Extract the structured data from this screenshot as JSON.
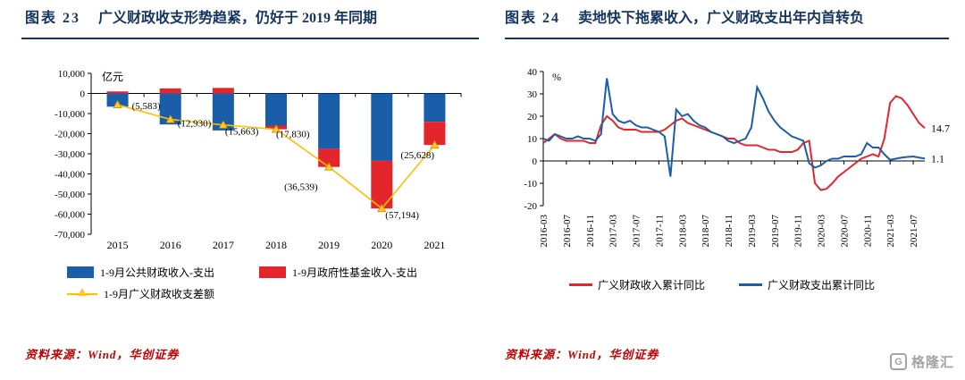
{
  "colors": {
    "title_navy": "#15355E",
    "bar_blue": "#1A5DA8",
    "bar_red": "#E5252C",
    "line_yellow": "#FFC000",
    "marker_yellow": "#FFC828",
    "marker_edge": "#C89600",
    "label_red": "#E60000",
    "line_red": "#E5252C",
    "line_blue": "#1A5DA8",
    "source_red": "#C00000",
    "axis_black": "#000000",
    "logo_grey": "#A3A3A3"
  },
  "left_panel": {
    "title_prefix": "图表 23",
    "title_text": "广义财政收支形势趋紧，仍好于 2019 年同期",
    "source": "资料来源：Wind，华创证券"
  },
  "right_panel": {
    "title_prefix": "图表 24",
    "title_text": "卖地快下拖累收入，广义财政支出年内首转负",
    "source": "资料来源：Wind，华创证券"
  },
  "logo": {
    "g": "G",
    "text": "格隆汇"
  },
  "chart_data": [
    {
      "type": "bar",
      "title": "图表 23 广义财政收支形势趋紧，仍好于 2019 年同期",
      "unit": "亿元",
      "categories": [
        "2015",
        "2016",
        "2017",
        "2018",
        "2019",
        "2020",
        "2021"
      ],
      "ylim": [
        -70000,
        10000
      ],
      "ytick_step": 10000,
      "grid": false,
      "legend_position": "bottom",
      "series": [
        {
          "name": "1-9月公共财政收入-支出",
          "type": "bar",
          "color_key": "bar_blue",
          "values": [
            -6583,
            -15430,
            -18400,
            -16000,
            -27500,
            -33500,
            -14100
          ]
        },
        {
          "name": "1-9月政府性基金收入-支出",
          "type": "bar",
          "color_key": "bar_red",
          "values": [
            1000,
            2500,
            2737,
            -1830,
            -9039,
            -23694,
            -11528
          ]
        },
        {
          "name": "1-9月广义财政收支差额",
          "type": "line",
          "color_key": "line_yellow",
          "values": [
            -5583,
            -12930,
            -15663,
            -17830,
            -36539,
            -57194,
            -25628
          ],
          "labels": [
            "(5,583)",
            "(12,930)",
            "(15,663)",
            "(17,830)",
            "(36,539)",
            "(57,194)",
            "(25,628)"
          ],
          "label_offsets": [
            [
              16,
              5
            ],
            [
              8,
              8
            ],
            [
              2,
              11
            ],
            [
              0,
              9
            ],
            [
              -50,
              26
            ],
            [
              4,
              11
            ],
            [
              -38,
              15
            ]
          ]
        }
      ]
    },
    {
      "type": "line",
      "title": "图表 24 卖地快下拖累收入，广义财政支出年内首转负",
      "unit": "%",
      "ylim": [
        -20,
        40
      ],
      "ytick_step": 10,
      "grid": false,
      "legend_position": "bottom",
      "x_start": "2016-03",
      "x_end": "2021-09",
      "x_freq": "monthly",
      "x_tick_every": 4,
      "x_tick_labels": [
        "2016-03",
        "2016-07",
        "2016-11",
        "2017-03",
        "2017-07",
        "2017-11",
        "2018-03",
        "2018-07",
        "2018-11",
        "2019-03",
        "2019-07",
        "2019-11",
        "2020-03",
        "2020-07",
        "2020-11",
        "2021-03",
        "2021-07"
      ],
      "series": [
        {
          "name": "广义财政收入累计同比",
          "color_key": "line_red",
          "end_label": "14.7",
          "values": [
            8,
            10,
            12,
            10,
            9,
            9,
            9,
            9,
            8,
            8,
            16,
            20,
            18,
            15,
            14,
            14,
            14,
            13,
            13,
            13,
            13,
            14,
            16,
            18,
            19,
            17,
            16,
            15,
            14,
            13,
            12,
            11,
            10,
            10,
            8,
            7,
            7,
            7,
            6,
            5,
            5,
            4,
            4,
            4,
            5,
            8,
            9,
            -10,
            -13,
            -12.5,
            -10,
            -7,
            -5,
            -3,
            -1,
            1,
            2,
            3,
            2,
            10,
            26,
            29,
            28,
            25,
            21,
            17,
            14.7
          ]
        },
        {
          "name": "广义财政支出累计同比",
          "color_key": "line_blue",
          "end_label": "1.1",
          "values": [
            10,
            9,
            12,
            11,
            10,
            10,
            11,
            10,
            10,
            9,
            12,
            37,
            21,
            18,
            17,
            18,
            16,
            15,
            15,
            14,
            13,
            11,
            -7,
            23,
            20,
            21,
            18,
            16,
            15,
            13,
            12,
            11,
            9,
            8,
            9,
            10,
            15,
            33,
            28,
            22,
            18,
            15,
            13,
            11,
            10,
            9,
            -1,
            -3,
            -2,
            0,
            1,
            1,
            2,
            2,
            2,
            3,
            8,
            6,
            6,
            3,
            0.5,
            1,
            1.5,
            1.8,
            2,
            1.5,
            1.1
          ]
        }
      ]
    }
  ]
}
